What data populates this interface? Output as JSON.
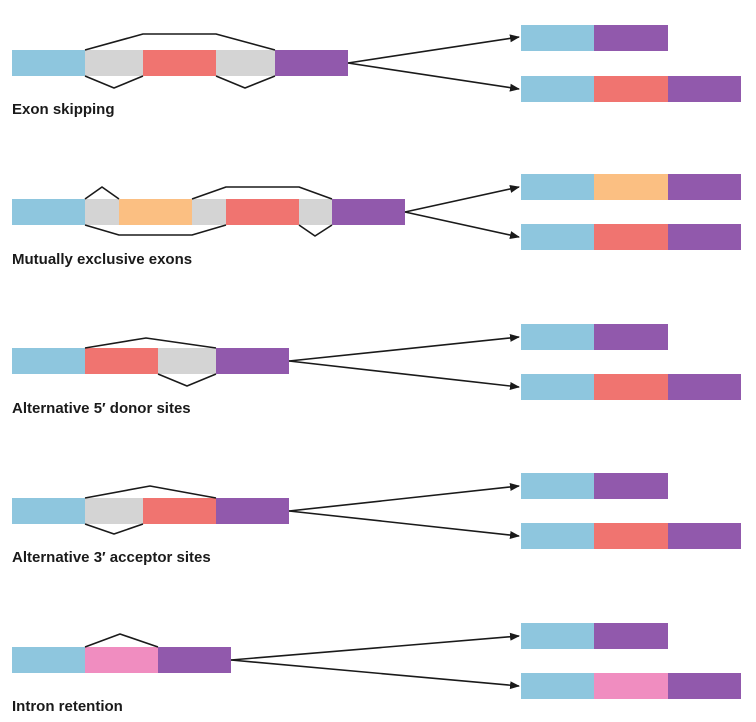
{
  "colors": {
    "exon_blue": "#8ec6de",
    "exon_purple": "#9159ac",
    "exon_red": "#f07470",
    "exon_orange": "#fbbf82",
    "exon_pink": "#f08dc0",
    "intron_gray": "#d4d4d4",
    "line": "#1a1a1a"
  },
  "panels": [
    {
      "label": "Exon skipping"
    },
    {
      "label": "Mutually exclusive exons"
    },
    {
      "label": "Alternative 5′ donor sites"
    },
    {
      "label": "Alternative 3′ acceptor sites"
    },
    {
      "label": "Intron retention"
    }
  ]
}
